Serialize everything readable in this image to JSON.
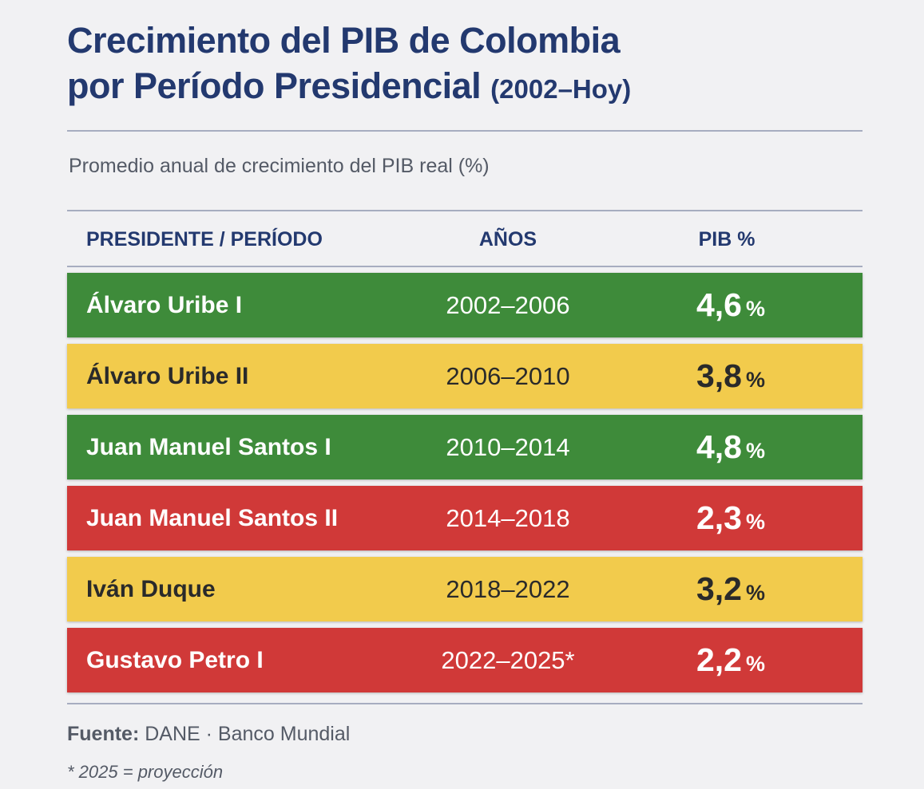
{
  "chart_data": {
    "type": "table",
    "title_line1": "Crecimiento del PIB de Colombia",
    "title_line2": "por Período Presidencial",
    "title_range": "(2002–Hoy)",
    "subtitle": "Promedio anual de crecimiento del PIB real (%)",
    "columns": [
      "PRESIDENTE / PERÍODO",
      "AÑOS",
      "PIB %"
    ],
    "percent_unit": "%",
    "rows": [
      {
        "president": "Álvaro Uribe I",
        "years": "2002–2006",
        "value": "4,6",
        "color": "#3e8b3a",
        "text_color": "#ffffff"
      },
      {
        "president": "Álvaro Uribe II",
        "years": "2006–2010",
        "value": "3,8",
        "color": "#f2cb4c",
        "text_color": "#2a2a2a"
      },
      {
        "president": "Juan Manuel Santos I",
        "years": "2010–2014",
        "value": "4,8",
        "color": "#3e8b3a",
        "text_color": "#ffffff"
      },
      {
        "president": "Juan Manuel Santos II",
        "years": "2014–2018",
        "value": "2,3",
        "color": "#d03938",
        "text_color": "#ffffff"
      },
      {
        "president": "Iván Duque",
        "years": "2018–2022",
        "value": "3,2",
        "color": "#f2cb4c",
        "text_color": "#2a2a2a"
      },
      {
        "president": "Gustavo Petro I",
        "years": "2022–2025*",
        "value": "2,2",
        "color": "#d03938",
        "text_color": "#ffffff"
      }
    ],
    "source_label": "Fuente:",
    "source_text": "DANE · Banco Mundial",
    "footnote": "* 2025 = proyección"
  }
}
